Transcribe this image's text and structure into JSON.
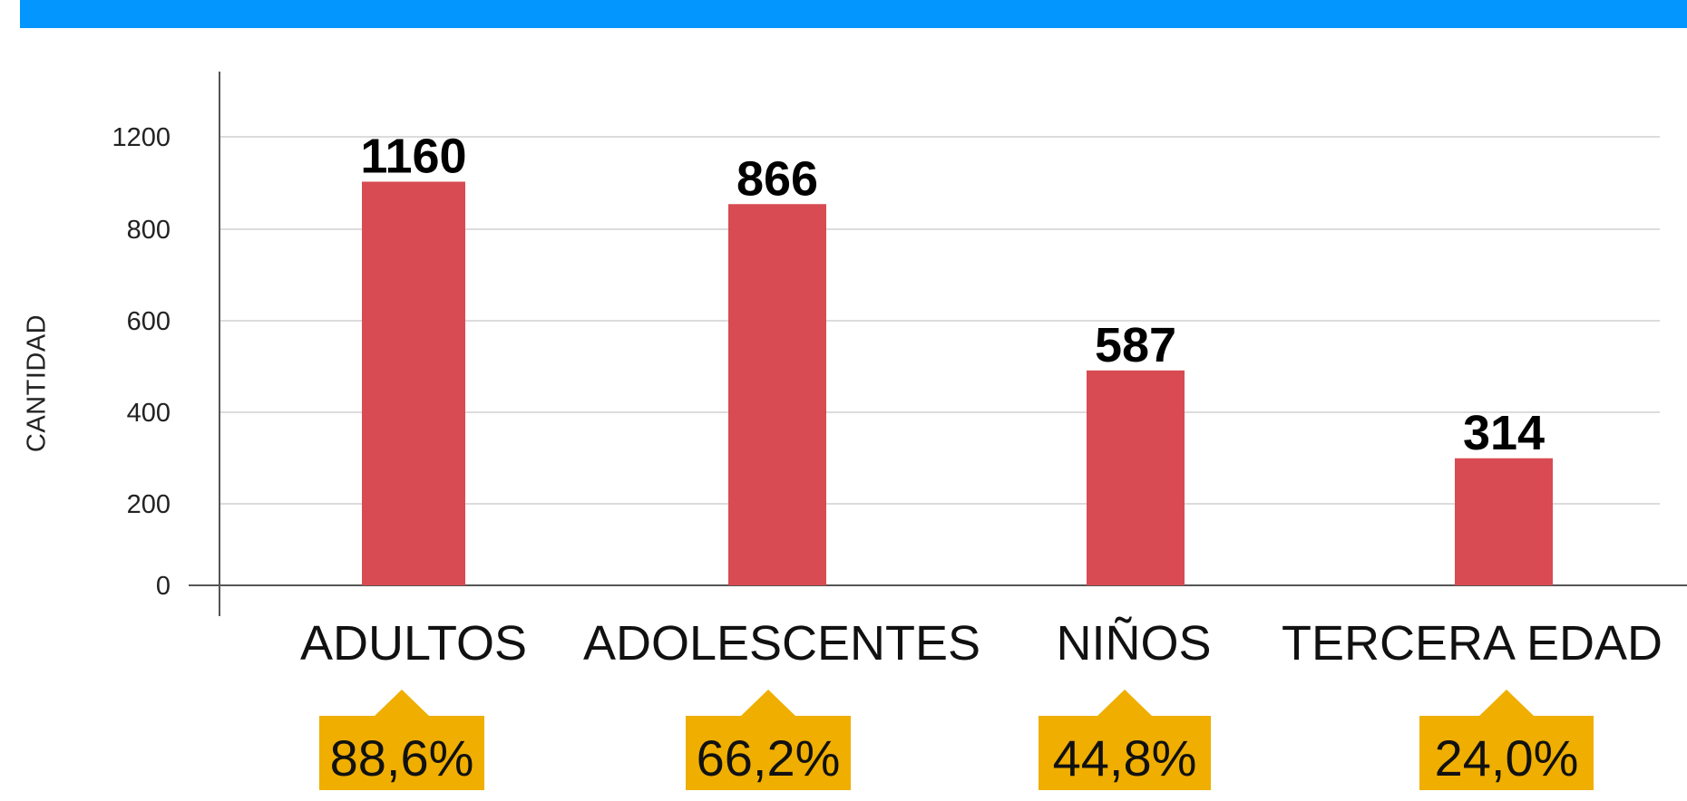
{
  "chart_data": {
    "type": "bar",
    "categories": [
      "ADULTOS",
      "ADOLESCENTES",
      "NIÑOS",
      "TERCERA EDAD"
    ],
    "values": [
      1160,
      866,
      587,
      314
    ],
    "bar_heights_in_axis_units": [
      1080,
      1020,
      575,
      340
    ],
    "percentages": [
      "88,6%",
      "66,2%",
      "44,8%",
      "24,0%"
    ],
    "xlabel": "",
    "ylabel": "CANTIDAD",
    "y_ticks": [
      "0",
      "200",
      "400",
      "600",
      "800",
      "1200"
    ],
    "ylim": [
      0,
      1200
    ],
    "grid": true,
    "bar_color": "#d84b52",
    "badge_color": "#efae00",
    "header_bar_color": "#0396ff"
  }
}
